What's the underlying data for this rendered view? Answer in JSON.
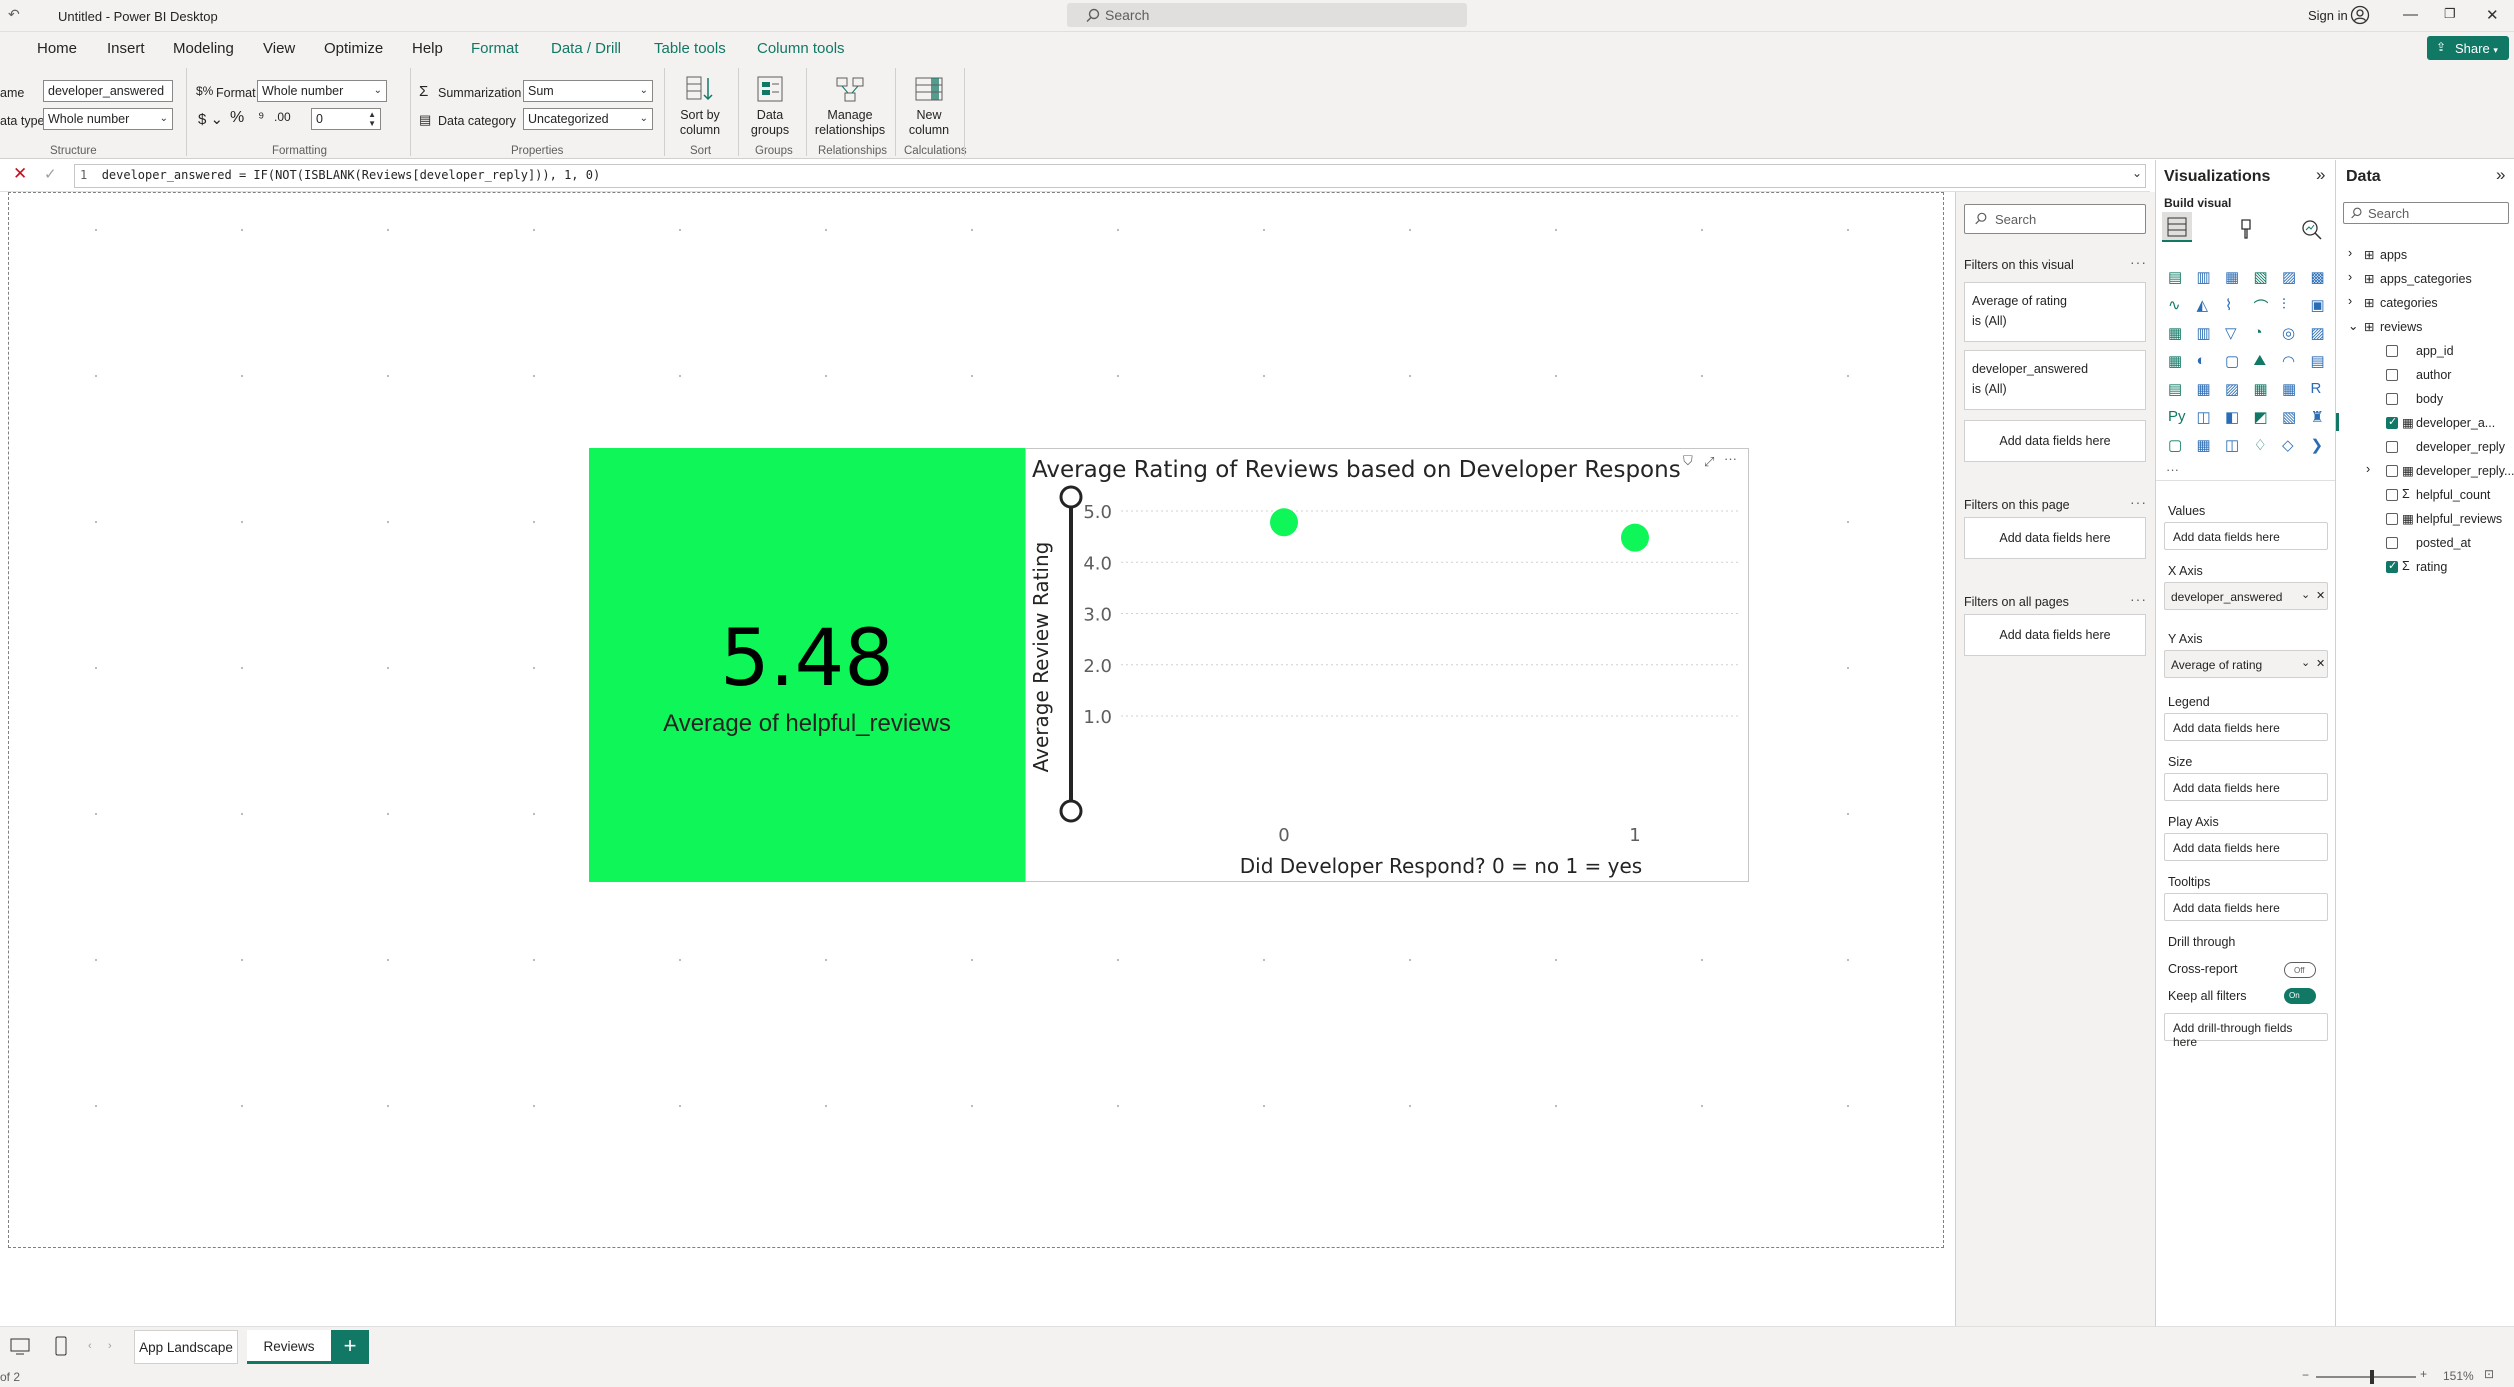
{
  "app": {
    "title": "Untitled - Power BI Desktop",
    "search_placeholder": "Search",
    "sign_in": "Sign in",
    "share": "Share"
  },
  "menu": [
    "Home",
    "Insert",
    "Modeling",
    "View",
    "Optimize",
    "Help",
    "Format",
    "Data / Drill",
    "Table tools",
    "Column tools"
  ],
  "ribbon": {
    "structure": {
      "name_label": "ame",
      "name_value": "developer_answered",
      "type_label": "ata type",
      "type_value": "Whole number",
      "group": "Structure"
    },
    "formatting": {
      "format_label": "Format",
      "format_value": "Whole number",
      "decimal_value": "0",
      "group": "Formatting"
    },
    "properties": {
      "summ_label": "Summarization",
      "summ_value": "Sum",
      "cat_label": "Data category",
      "cat_value": "Uncategorized",
      "group": "Properties"
    },
    "sort": {
      "label": "Sort by column",
      "group": "Sort"
    },
    "groups": {
      "label": "Data groups",
      "group": "Groups"
    },
    "relationships": {
      "label": "Manage relationships",
      "group": "Relationships"
    },
    "calculations": {
      "label": "New column",
      "group": "Calculations"
    }
  },
  "formula": {
    "line": "1",
    "text": "developer_answered = IF(NOT(ISBLANK(Reviews[developer_reply])), 1, 0)"
  },
  "card": {
    "value": "5.48",
    "label": "Average of helpful_reviews"
  },
  "chart_data": {
    "type": "scatter",
    "title": "Average Rating of Reviews based on Developer Respons",
    "xlabel": "Did Developer Respond? 0 = no 1 = yes",
    "ylabel": "Average Review Rating",
    "x": [
      0,
      1
    ],
    "y": [
      4.78,
      4.48
    ],
    "yticks": [
      "5.0",
      "4.0",
      "3.0",
      "2.0",
      "1.0"
    ],
    "xticks": [
      "0",
      "1"
    ],
    "ylim": [
      0,
      5
    ],
    "color": "#0ff658"
  },
  "filters": {
    "search": "Search",
    "on_visual": "Filters on this visual",
    "items": [
      {
        "name": "Average of rating",
        "state": "is (All)"
      },
      {
        "name": "developer_answered",
        "state": "is (All)"
      }
    ],
    "add": "Add data fields here",
    "on_page": "Filters on this page",
    "on_all": "Filters on all pages"
  },
  "viz": {
    "title": "Visualizations",
    "build": "Build visual",
    "wells": {
      "values": "Values",
      "xaxis": "X Axis",
      "xaxis_field": "developer_answered",
      "yaxis": "Y Axis",
      "yaxis_field": "Average of rating",
      "legend": "Legend",
      "size": "Size",
      "play": "Play Axis",
      "tooltips": "Tooltips",
      "add": "Add data fields here"
    },
    "drill": {
      "title": "Drill through",
      "cross": "Cross-report",
      "cross_state": "Off",
      "keep": "Keep all filters",
      "keep_state": "On",
      "add": "Add drill-through fields here"
    }
  },
  "data": {
    "title": "Data",
    "search": "Search",
    "tables": [
      "apps",
      "apps_categories",
      "categories",
      "reviews"
    ],
    "fields": [
      "app_id",
      "author",
      "body",
      "developer_a...",
      "developer_reply",
      "developer_reply...",
      "helpful_count",
      "helpful_reviews",
      "posted_at",
      "rating"
    ]
  },
  "pages": {
    "tabs": [
      "App Landscape",
      "Reviews"
    ],
    "status": "of 2",
    "zoom": "151%"
  },
  "colors": {
    "accent": "#117865",
    "card_bg": "#0ff658"
  }
}
